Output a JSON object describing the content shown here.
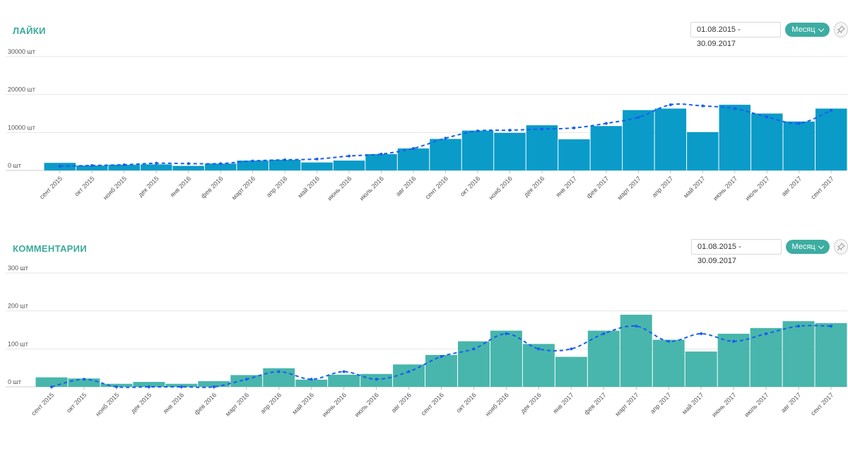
{
  "likes": {
    "title": "ЛАЙКИ",
    "date_range": "01.08.2015 - 30.09.2017",
    "period_label": "Месяц",
    "pin_icon": "pin-icon"
  },
  "comments": {
    "title": "КОММЕНТАРИИ",
    "date_range": "01.08.2015 - 30.09.2017",
    "period_label": "Месяц",
    "pin_icon": "pin-icon"
  },
  "chart_data": [
    {
      "type": "bar",
      "categories": [
        "сент 2015",
        "окт 2015",
        "нояб 2015",
        "дек 2015",
        "янв 2016",
        "фев 2016",
        "март 2016",
        "апр 2016",
        "май 2016",
        "июнь 2016",
        "июль 2016",
        "авг 2016",
        "сент 2016",
        "окт 2016",
        "нояб 2016",
        "дек 2016",
        "янв 2017",
        "фев 2017",
        "март 2017",
        "апр 2017",
        "май 2017",
        "июнь 2017",
        "июль 2017",
        "авг 2017",
        "сент 2017"
      ],
      "series": [
        {
          "values": [
            2000,
            1300,
            1500,
            1600,
            1200,
            1800,
            2600,
            2800,
            2100,
            2600,
            4300,
            5800,
            8300,
            10500,
            9900,
            11900,
            8200,
            11700,
            15900,
            16300,
            10100,
            17300,
            15000,
            12900,
            16300
          ]
        },
        {
          "values": [
            1100,
            1300,
            1500,
            1900,
            1800,
            1800,
            2500,
            2800,
            3000,
            3800,
            4300,
            5800,
            8500,
            10400,
            10600,
            10900,
            11200,
            12400,
            14000,
            17300,
            17000,
            16300,
            14100,
            12400,
            15800
          ]
        }
      ],
      "ylim": [
        0,
        30000
      ],
      "yticks": [
        "0 шт",
        "10000 шт",
        "20000 шт",
        "30000 шт"
      ],
      "colors": {
        "bar": "#0a9bc8",
        "line": "#1a5df0"
      },
      "grid": true
    },
    {
      "type": "bar",
      "categories": [
        "сент 2015",
        "окт 2015",
        "нояб 2015",
        "дек 2015",
        "янв 2016",
        "фев 2016",
        "март 2016",
        "апр 2016",
        "май 2016",
        "июнь 2016",
        "июль 2016",
        "авг 2016",
        "сент 2016",
        "окт 2016",
        "нояб 2016",
        "дек 2016",
        "янв 2017",
        "фев 2017",
        "март 2017",
        "апр 2017",
        "май 2017",
        "июнь 2017",
        "июль 2017",
        "авг 2017",
        "сент 2017"
      ],
      "series": [
        {
          "values": [
            25,
            22,
            8,
            13,
            8,
            15,
            31,
            49,
            19,
            32,
            34,
            59,
            84,
            120,
            148,
            113,
            79,
            148,
            190,
            124,
            93,
            140,
            155,
            173,
            168
          ]
        },
        {
          "values": [
            0,
            20,
            0,
            0,
            0,
            0,
            20,
            40,
            20,
            40,
            20,
            40,
            80,
            100,
            140,
            100,
            100,
            140,
            160,
            120,
            140,
            120,
            140,
            160,
            160
          ]
        }
      ],
      "ylim": [
        0,
        300
      ],
      "yticks": [
        "0 шт",
        "100 шт",
        "200 шт",
        "300 шт"
      ],
      "colors": {
        "bar": "#48b6ac",
        "line": "#1a5df0"
      },
      "grid": true
    }
  ]
}
